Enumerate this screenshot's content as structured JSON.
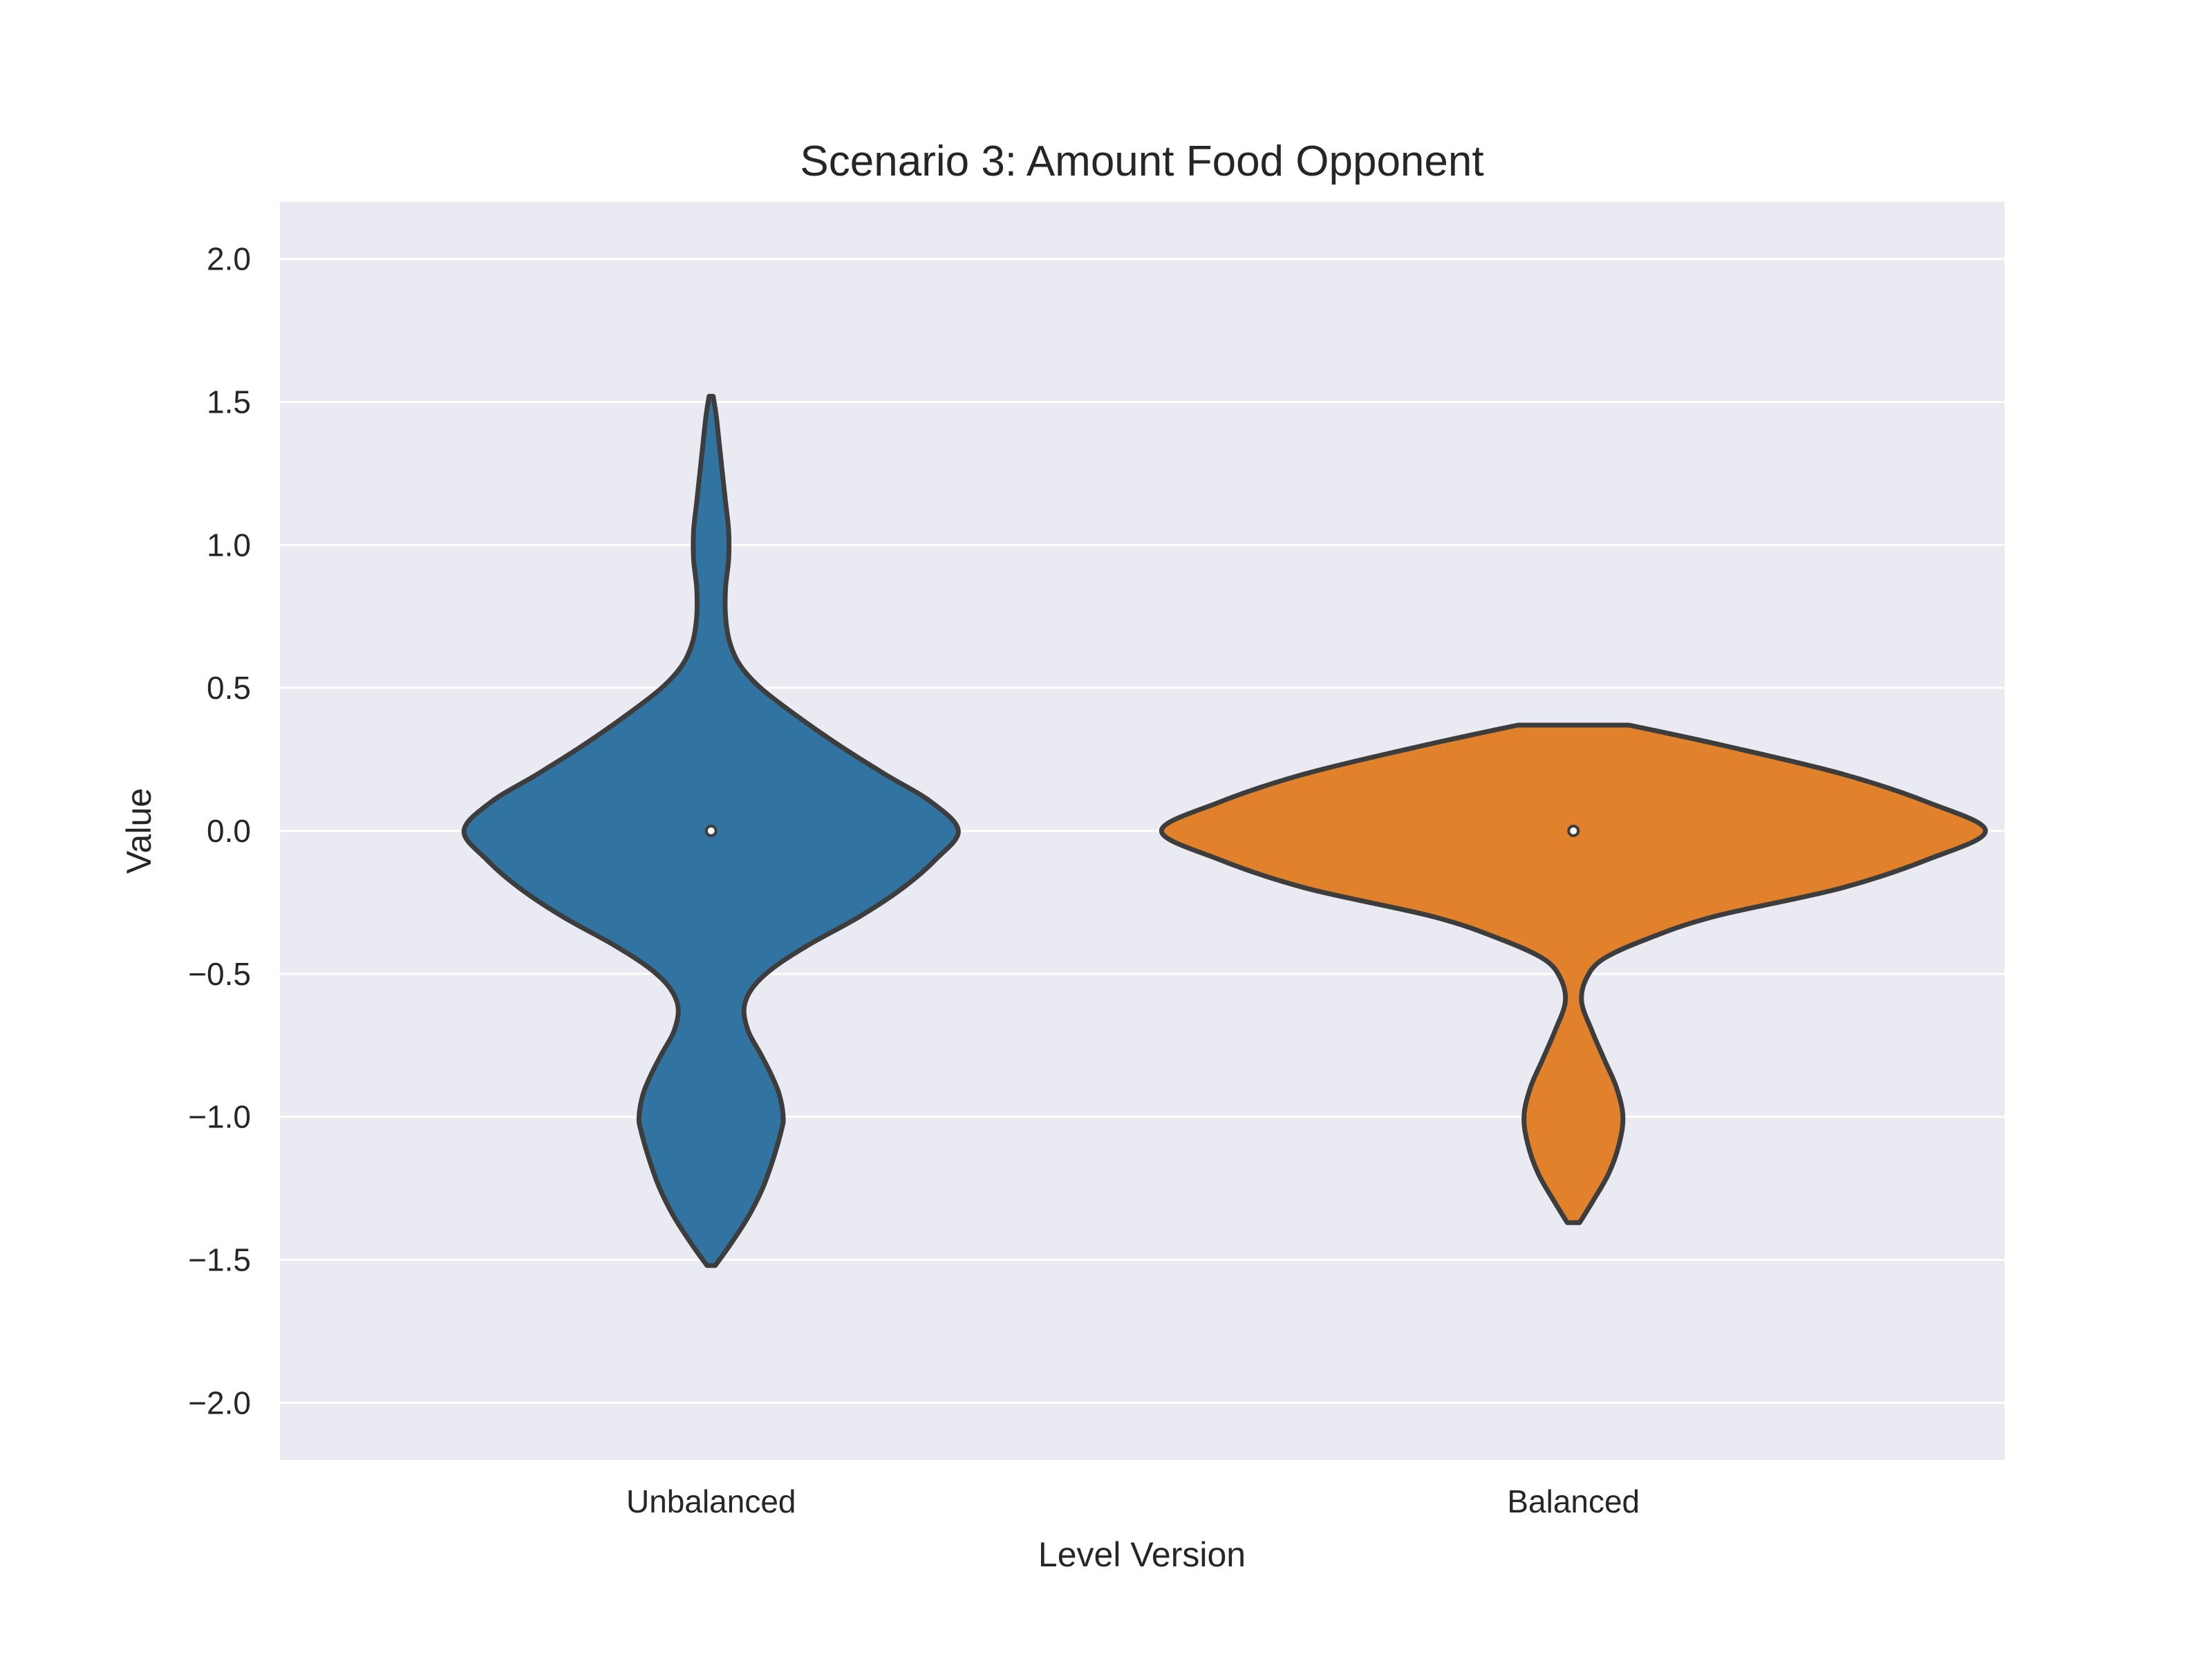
{
  "chart_data": {
    "type": "violin",
    "title": "Scenario 3: Amount Food Opponent",
    "xlabel": "Level Version",
    "ylabel": "Value",
    "ylim": [
      -2.2,
      2.2
    ],
    "yticks": [
      2.0,
      1.5,
      1.0,
      0.5,
      0.0,
      -0.5,
      -1.0,
      -1.5,
      -2.0
    ],
    "ytick_labels": [
      "2.0",
      "1.5",
      "1.0",
      "0.5",
      "0.0",
      "−0.5",
      "−1.0",
      "−1.5",
      "−2.0"
    ],
    "categories": [
      "Unbalanced",
      "Balanced"
    ],
    "grid": true,
    "background_color": "#eaeaf2",
    "grid_color": "#ffffff",
    "outline_color": "#3d3d3d",
    "series": [
      {
        "category": "Unbalanced",
        "color": "#3274a1",
        "median": 0.0,
        "min": -1.52,
        "max": 1.52,
        "density_profile": [
          [
            -1.52,
            0.02
          ],
          [
            -1.45,
            0.09
          ],
          [
            -1.35,
            0.18
          ],
          [
            -1.25,
            0.25
          ],
          [
            -1.15,
            0.3
          ],
          [
            -1.05,
            0.34
          ],
          [
            -1.0,
            0.35
          ],
          [
            -0.92,
            0.33
          ],
          [
            -0.85,
            0.29
          ],
          [
            -0.78,
            0.24
          ],
          [
            -0.7,
            0.18
          ],
          [
            -0.62,
            0.16
          ],
          [
            -0.55,
            0.2
          ],
          [
            -0.48,
            0.3
          ],
          [
            -0.4,
            0.47
          ],
          [
            -0.3,
            0.72
          ],
          [
            -0.2,
            0.93
          ],
          [
            -0.1,
            1.09
          ],
          [
            0.0,
            1.2
          ],
          [
            0.1,
            1.07
          ],
          [
            0.2,
            0.84
          ],
          [
            0.3,
            0.62
          ],
          [
            0.4,
            0.42
          ],
          [
            0.5,
            0.24
          ],
          [
            0.58,
            0.14
          ],
          [
            0.66,
            0.09
          ],
          [
            0.75,
            0.07
          ],
          [
            0.85,
            0.07
          ],
          [
            0.95,
            0.085
          ],
          [
            1.05,
            0.085
          ],
          [
            1.15,
            0.07
          ],
          [
            1.25,
            0.055
          ],
          [
            1.35,
            0.04
          ],
          [
            1.45,
            0.025
          ],
          [
            1.52,
            0.01
          ]
        ]
      },
      {
        "category": "Balanced",
        "color": "#e1812c",
        "median": 0.0,
        "min": -1.37,
        "max": 0.37,
        "density_profile": [
          [
            -1.37,
            0.03
          ],
          [
            -1.3,
            0.09
          ],
          [
            -1.2,
            0.17
          ],
          [
            -1.1,
            0.22
          ],
          [
            -1.0,
            0.24
          ],
          [
            -0.9,
            0.21
          ],
          [
            -0.8,
            0.15
          ],
          [
            -0.7,
            0.09
          ],
          [
            -0.6,
            0.04
          ],
          [
            -0.52,
            0.06
          ],
          [
            -0.45,
            0.14
          ],
          [
            -0.38,
            0.35
          ],
          [
            -0.3,
            0.68
          ],
          [
            -0.2,
            1.3
          ],
          [
            -0.1,
            1.72
          ],
          [
            0.0,
            2.0
          ],
          [
            0.1,
            1.72
          ],
          [
            0.2,
            1.3
          ],
          [
            0.3,
            0.72
          ],
          [
            0.37,
            0.27
          ]
        ]
      }
    ]
  }
}
